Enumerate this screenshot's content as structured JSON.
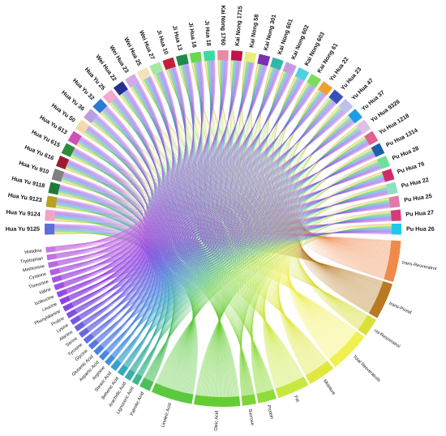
{
  "top_groups": [
    {
      "label": "Hua Yu 9125",
      "color": "#5b6fd6"
    },
    {
      "label": "Hua Yu 9124",
      "color": "#f2a4c8"
    },
    {
      "label": "Hua Yu 9123",
      "color": "#b8a020"
    },
    {
      "label": "Hua Yu 9118",
      "color": "#1f7a3a"
    },
    {
      "label": "Hua Yu 910",
      "color": "#808080"
    },
    {
      "label": "Hua Yu 616",
      "color": "#9b1c2e"
    },
    {
      "label": "Hua Yu 615",
      "color": "#2e8b3a"
    },
    {
      "label": "Hua Yu 613",
      "color": "#d24fb5"
    },
    {
      "label": "Hua Yu 50",
      "color": "#f3d9b0"
    },
    {
      "label": "Hua Yu 36",
      "color": "#b99ee0"
    },
    {
      "label": "Hua Yu 32",
      "color": "#2d78d1"
    },
    {
      "label": "Hua Yu 25",
      "color": "#f3a9cf"
    },
    {
      "label": "Wei Hua 22",
      "color": "#26308f"
    },
    {
      "label": "Wei Hua 23",
      "color": "#d5a9e6"
    },
    {
      "label": "Wei Hua 25",
      "color": "#f4e3b8"
    },
    {
      "label": "Wei Hua 27",
      "color": "#a6e8a0"
    },
    {
      "label": "Ji Hua 10",
      "color": "#c41e3a"
    },
    {
      "label": "Ji Hua 13",
      "color": "#1f8a4c"
    },
    {
      "label": "Ji Hua 16",
      "color": "#66d94f"
    },
    {
      "label": "Ji Hua 18",
      "color": "#3dd9a0"
    },
    {
      "label": "Kai Nong 1760",
      "color": "#e98aa5"
    },
    {
      "label": "Kai Nong 1715",
      "color": "#c4124a"
    },
    {
      "label": "Kai Nong 58",
      "color": "#e8ee7a"
    },
    {
      "label": "Kai Nong 301",
      "color": "#7b2fb0"
    },
    {
      "label": "Kai Nong 601",
      "color": "#2fb8a8"
    },
    {
      "label": "Kai Nong 602",
      "color": "#c69ae0"
    },
    {
      "label": "Kai Nong 603",
      "color": "#4fd0e0"
    },
    {
      "label": "Kai Nong 61",
      "color": "#7ddc5a"
    },
    {
      "label": "Yu Hua 22",
      "color": "#f0a030"
    },
    {
      "label": "Yu Hua 23",
      "color": "#3a4fb8"
    },
    {
      "label": "Yu Hua 47",
      "color": "#bfbfef"
    },
    {
      "label": "Yu Hua 37",
      "color": "#1aa0e0"
    },
    {
      "label": "Yu Hua 9326",
      "color": "#e0c0e8"
    },
    {
      "label": "Yu Hua 1218",
      "color": "#e06090"
    },
    {
      "label": "Pu Hua 1314",
      "color": "#1f5fa8"
    },
    {
      "label": "Pu Hua 28",
      "color": "#6fe09a"
    },
    {
      "label": "Pu Hua 76",
      "color": "#d12a6a"
    },
    {
      "label": "Pu Hua 22",
      "color": "#8fe0c0"
    },
    {
      "label": "Pu Hua 25",
      "color": "#e07aa8"
    },
    {
      "label": "Pu Hua 27",
      "color": "#d63a78"
    },
    {
      "label": "Pu Hua 26",
      "color": "#1ec8e8"
    }
  ],
  "bottom_groups": [
    {
      "label": "trans-Resveratrol",
      "color": "#f08a4a"
    },
    {
      "label": "trans-Piceid",
      "color": "#b87a22"
    },
    {
      "label": "cis-Resveratrol",
      "color": "#d8e03a"
    },
    {
      "label": "Total Resveratrols",
      "color": "#f0f050"
    },
    {
      "label": "Moisture",
      "color": "#e0e840"
    },
    {
      "label": "Fat",
      "color": "#c8e840"
    },
    {
      "label": "Protein",
      "color": "#8fdc3a"
    },
    {
      "label": "Sucrose",
      "color": "#7ed43a"
    },
    {
      "label": "Oleic Acid",
      "color": "#66cc33"
    },
    {
      "label": "Linoleic Acid",
      "color": "#5cc840"
    },
    {
      "label": "Palmitic Acid",
      "color": "#4abf5a"
    },
    {
      "label": "Lignoceric Acid",
      "color": "#3ab88a"
    },
    {
      "label": "Arachidic Acid",
      "color": "#38b0a8"
    },
    {
      "label": "Behenic Acid",
      "color": "#36a8c0"
    },
    {
      "label": "Stearic Acid",
      "color": "#3aa0d0"
    },
    {
      "label": "Arginine",
      "color": "#4090d8"
    },
    {
      "label": "Aspartic Acid",
      "color": "#4a88e0"
    },
    {
      "label": "Glutamic Acid",
      "color": "#5080e0"
    },
    {
      "label": "Glycine",
      "color": "#5a78e0"
    },
    {
      "label": "Tyrosine",
      "color": "#6070e0"
    },
    {
      "label": "Serine",
      "color": "#6868e0"
    },
    {
      "label": "Alanine",
      "color": "#7060e0"
    },
    {
      "label": "Lysine",
      "color": "#7858e0"
    },
    {
      "label": "Proline",
      "color": "#8050e0"
    },
    {
      "label": "Phenylalanine",
      "color": "#8848e0"
    },
    {
      "label": "Leucine",
      "color": "#9040e0"
    },
    {
      "label": "Isoleucine",
      "color": "#9848e0"
    },
    {
      "label": "Valine",
      "color": "#a050e0"
    },
    {
      "label": "Threonine",
      "color": "#a858e0"
    },
    {
      "label": "Cysteine",
      "color": "#b060e0"
    },
    {
      "label": "Methionine",
      "color": "#b868e0"
    },
    {
      "label": "Tryptophan",
      "color": "#c070e0"
    },
    {
      "label": "Histidine",
      "color": "#c878e0"
    }
  ],
  "links_info": "every top group connects to every bottom group"
}
